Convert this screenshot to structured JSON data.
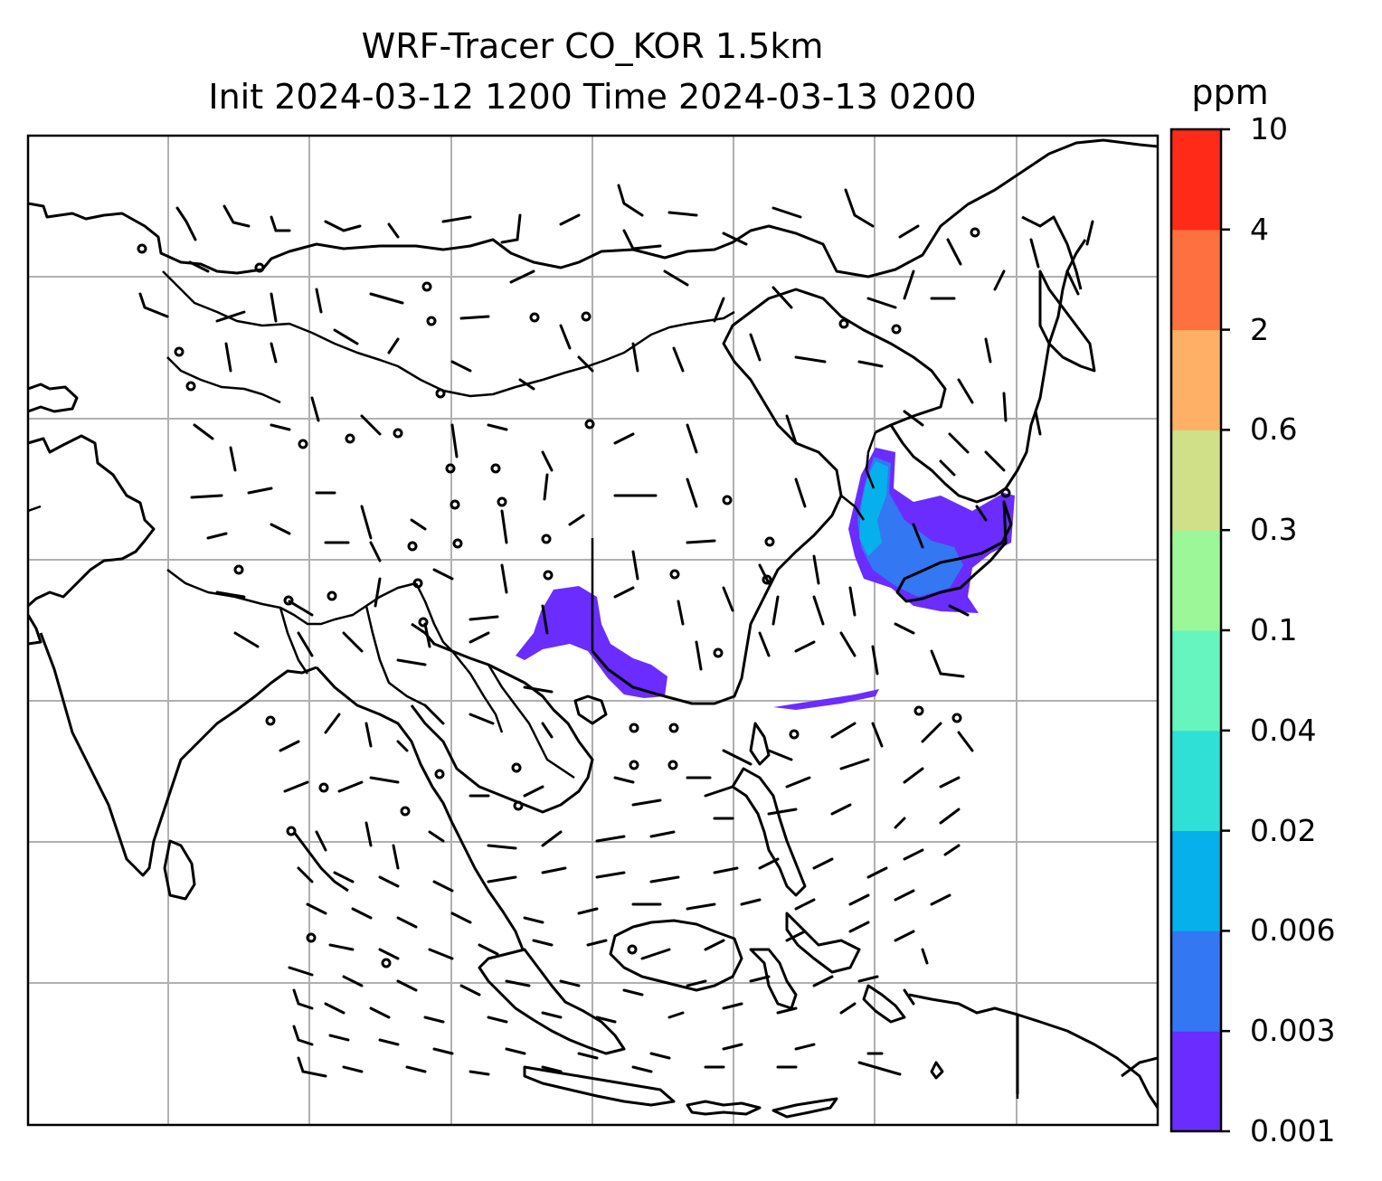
{
  "title": {
    "line1": "WRF-Tracer CO_KOR 1.5km",
    "line2": "Init 2024-03-12 1200 Time 2024-03-13 0200"
  },
  "colorbar": {
    "unit": "ppm",
    "levels": [
      "0.001",
      "0.003",
      "0.006",
      "0.02",
      "0.04",
      "0.1",
      "0.3",
      "0.6",
      "2",
      "4",
      "10"
    ],
    "colors": [
      "#6a2cff",
      "#3377f2",
      "#06b0ea",
      "#2ee0d5",
      "#66f5bf",
      "#9cf799",
      "#cfe089",
      "#feb166",
      "#ff7040",
      "#ff2a18"
    ]
  },
  "map": {
    "gridlines": true,
    "features": [
      "coastlines",
      "country borders",
      "wind barbs",
      "CO tracer concentration"
    ],
    "concentration_colors": {
      "low": "#6a2cff",
      "mid": "#3377f2",
      "high": "#06b0ea"
    }
  }
}
